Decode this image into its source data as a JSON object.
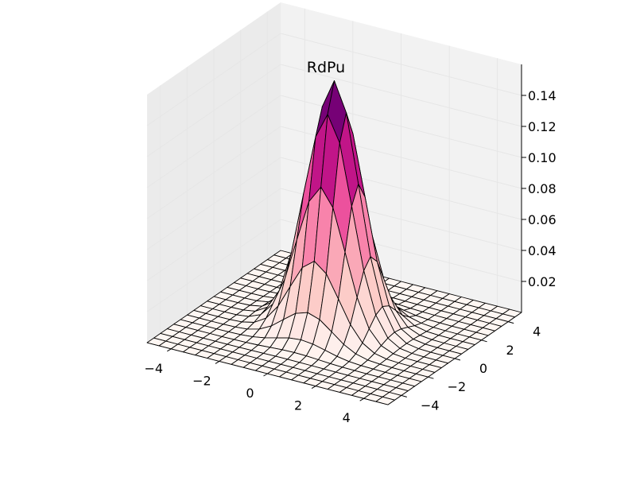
{
  "chart_data": {
    "type": "surface",
    "title": "RdPu",
    "colormap": "RdPu",
    "surface": {
      "function": "bivariate normal density",
      "grid_range": [
        -5,
        5
      ],
      "grid_step": 0.5,
      "stride": 1
    },
    "xlim": [
      -5,
      5
    ],
    "ylim": [
      -5,
      5
    ],
    "zlim": [
      0,
      0.16
    ],
    "x_ticks": [
      -4,
      -2,
      0,
      2,
      4
    ],
    "y_ticks": [
      -4,
      -2,
      0,
      2,
      4
    ],
    "z_ticks": [
      0.02,
      0.04,
      0.06,
      0.08,
      0.1,
      0.12,
      0.14
    ],
    "x_tick_labels": [
      "−4",
      "−2",
      "0",
      "2",
      "4"
    ],
    "y_tick_labels": [
      "−4",
      "−2",
      "0",
      "2",
      "4"
    ],
    "z_tick_labels": [
      "0.02",
      "0.04",
      "0.06",
      "0.08",
      "0.10",
      "0.12",
      "0.14"
    ],
    "xlabel": "",
    "ylabel": "",
    "zlabel": "",
    "grid": true,
    "colors": {
      "pane": "#f2f2f2",
      "pane_side": "#ebebeb",
      "grid": "#e6e6e6",
      "edge": "#000000"
    }
  }
}
